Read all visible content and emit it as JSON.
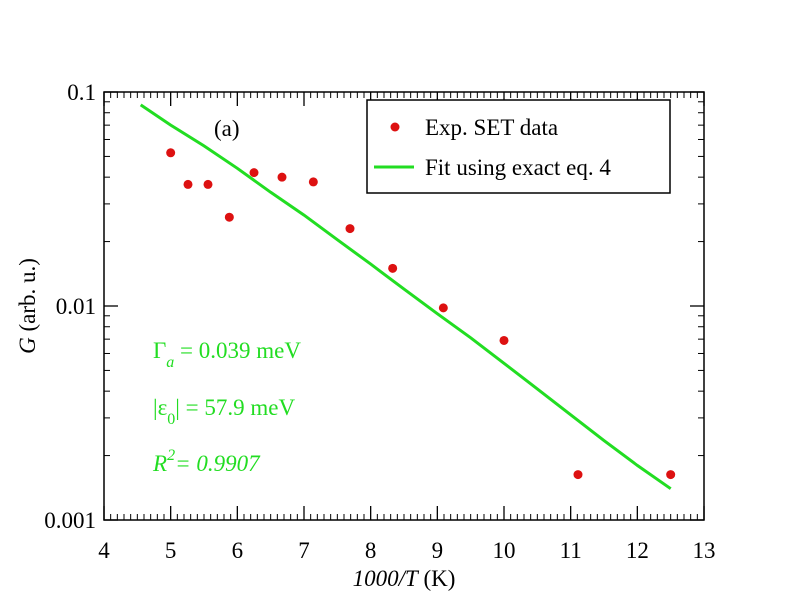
{
  "chart_data": {
    "type": "scatter",
    "panel_label": "(a)",
    "xlabel_italic": "1000/T",
    "xlabel_unit": " (K)",
    "ylabel_italic": "G",
    "ylabel_unit": " (arb. u.)",
    "xlim": [
      4,
      13
    ],
    "ylim": [
      0.001,
      0.1
    ],
    "yscale": "log",
    "x_ticks": [
      4,
      5,
      6,
      7,
      8,
      9,
      10,
      11,
      12,
      13
    ],
    "x_tick_labels": [
      "4",
      "5",
      "6",
      "7",
      "8",
      "9",
      "10",
      "11",
      "12",
      "13"
    ],
    "y_ticks": [
      0.001,
      0.01,
      0.1
    ],
    "y_tick_labels": [
      "0.001",
      "0.01",
      "0.1"
    ],
    "series": [
      {
        "name": "Exp. SET data",
        "kind": "scatter",
        "color": "#dd1111",
        "x": [
          5.0,
          5.26,
          5.56,
          5.88,
          6.25,
          6.67,
          7.14,
          7.69,
          8.33,
          9.09,
          10.0,
          11.11,
          12.5
        ],
        "y": [
          0.052,
          0.037,
          0.037,
          0.026,
          0.042,
          0.04,
          0.038,
          0.023,
          0.015,
          0.0098,
          0.0069,
          0.00163,
          0.00163
        ]
      },
      {
        "name": "Fit using exact eq. 4",
        "kind": "line",
        "color": "#22dd22",
        "x": [
          4.55,
          5.0,
          5.5,
          6.0,
          6.5,
          7.0,
          7.5,
          8.0,
          8.5,
          9.0,
          9.5,
          10.0,
          10.5,
          11.0,
          11.5,
          12.0,
          12.5
        ],
        "y": [
          0.087,
          0.07,
          0.056,
          0.044,
          0.034,
          0.0266,
          0.0204,
          0.0157,
          0.012,
          0.0092,
          0.0071,
          0.0054,
          0.0041,
          0.0031,
          0.00235,
          0.0018,
          0.0014
        ]
      }
    ],
    "legend": {
      "position": "top-right",
      "entries": [
        "Exp. SET data",
        "Fit using exact eq. 4"
      ]
    },
    "annotations": {
      "gamma": {
        "symbol": "Γ",
        "sub": "a",
        "rest": " = 0.039 meV"
      },
      "eps": {
        "open": "|ε",
        "sub": "0",
        "rest": "| = 57.9 meV"
      },
      "r2": {
        "symbol": "R",
        "sup": "2",
        "rest": "= 0.9907"
      }
    }
  }
}
